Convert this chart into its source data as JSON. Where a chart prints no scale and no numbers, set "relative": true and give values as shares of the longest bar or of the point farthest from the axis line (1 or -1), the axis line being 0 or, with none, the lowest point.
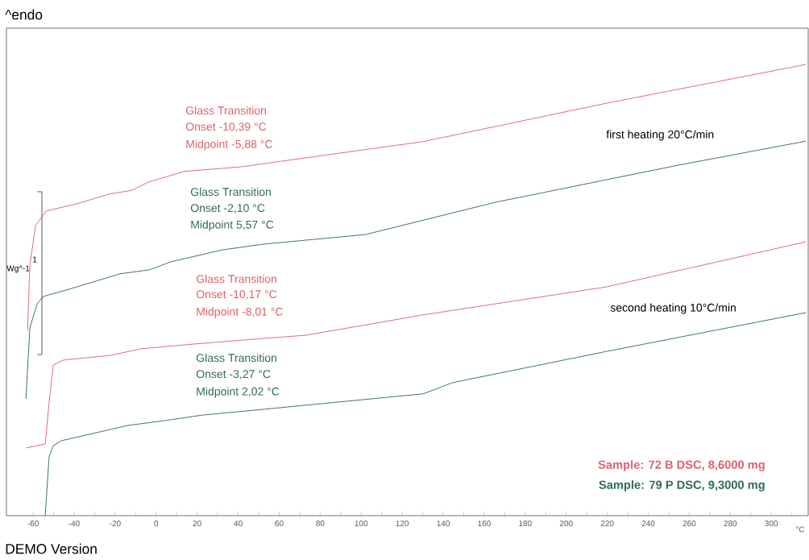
{
  "chart_data": {
    "type": "line",
    "relative": true,
    "xlabel": "°C",
    "xlim": [
      -73,
      318
    ],
    "xticks": [
      -60,
      {
        "value": -50,
        "label": null
      },
      -40,
      {
        "value": -30,
        "label": null
      },
      -20,
      {
        "value": -10,
        "label": null
      },
      0,
      {
        "value": 10,
        "label": null
      },
      20,
      {
        "value": 30,
        "label": null
      },
      40,
      {
        "value": 50,
        "label": null
      },
      60,
      {
        "value": 70,
        "label": null
      },
      80,
      {
        "value": 90,
        "label": null
      },
      100,
      {
        "value": 110,
        "label": null
      },
      120,
      {
        "value": 130,
        "label": null
      },
      140,
      {
        "value": 150,
        "label": null
      },
      160,
      {
        "value": 170,
        "label": null
      },
      180,
      {
        "value": 190,
        "label": null
      },
      200,
      {
        "value": 210,
        "label": null
      },
      220,
      {
        "value": 230,
        "label": null
      },
      240,
      {
        "value": 250,
        "label": null
      },
      260,
      {
        "value": 270,
        "label": null
      },
      280,
      {
        "value": 290,
        "label": null
      },
      300,
      {
        "value": 310,
        "label": null
      }
    ],
    "legend": "bottom right",
    "grid": false,
    "series": [
      {
        "name": "Sample: 72 B DSC, 8,6000 mg",
        "color": "#e0606a",
        "x": [
          -62.7,
          -61.6,
          -58.8,
          -53.7,
          -37.3,
          -22.7,
          -11.8,
          -3.9,
          13.7,
          41.2,
          130.2,
          219.6,
          316.9
        ],
        "values": [
          0.411,
          0.554,
          0.643,
          0.675,
          0.693,
          0.713,
          0.721,
          0.739,
          0.763,
          0.773,
          0.829,
          0.914,
          1.0
        ]
      },
      {
        "name": "Sample: 79 P DSC, 9,3000 mg",
        "color": "#2e6e50",
        "x": [
          -63.5,
          -61.6,
          -58.0,
          -54.9,
          -43.9,
          -17.6,
          -3.1,
          7.1,
          32.2,
          52.9,
          102.0,
          165.9,
          254.9,
          316.9
        ],
        "values": [
          0.259,
          0.416,
          0.47,
          0.486,
          0.5,
          0.536,
          0.545,
          0.5625,
          0.589,
          0.602,
          0.623,
          0.695,
          0.777,
          0.83
        ]
      },
      {
        "color": "#e0606a",
        "x": [
          -63.5,
          -54.1,
          -52.2,
          -50.2,
          -45.1,
          -22.7,
          -7.1,
          14.9,
          52.9,
          73.3,
          130.2,
          219.6,
          316.9
        ],
        "values": [
          0.15,
          0.159,
          0.25,
          0.334,
          0.345,
          0.355,
          0.37,
          0.379,
          0.393,
          0.4,
          0.445,
          0.507,
          0.607
        ]
      },
      {
        "color": "#2e6e50",
        "x": [
          -54.1,
          -52.2,
          -50.2,
          -46.3,
          -13.7,
          4.7,
          22.7,
          52.9,
          130.2,
          144.7,
          219.6,
          316.9
        ],
        "values": [
          0,
          0.13,
          0.155,
          0.166,
          0.2,
          0.211,
          0.223,
          0.236,
          0.27,
          0.295,
          0.364,
          0.45
        ]
      }
    ],
    "annotations": [
      "Glass Transition",
      "Onset -10,39 °C",
      "Midpoint -5,88 °C",
      "Glass Transition",
      "Onset -2,10 °C",
      "Midpoint 5,57 °C",
      "Glass Transition",
      "Onset -10,17 °C",
      "Midpoint -8,01 °C",
      "Glass Transition",
      "Onset -3,27 °C",
      "Midpoint 2,02 °C",
      "first heating 20°C/min",
      "second heating 10°C/min",
      "^endo",
      "1",
      "Wg^-1",
      "DEMO Version"
    ]
  }
}
